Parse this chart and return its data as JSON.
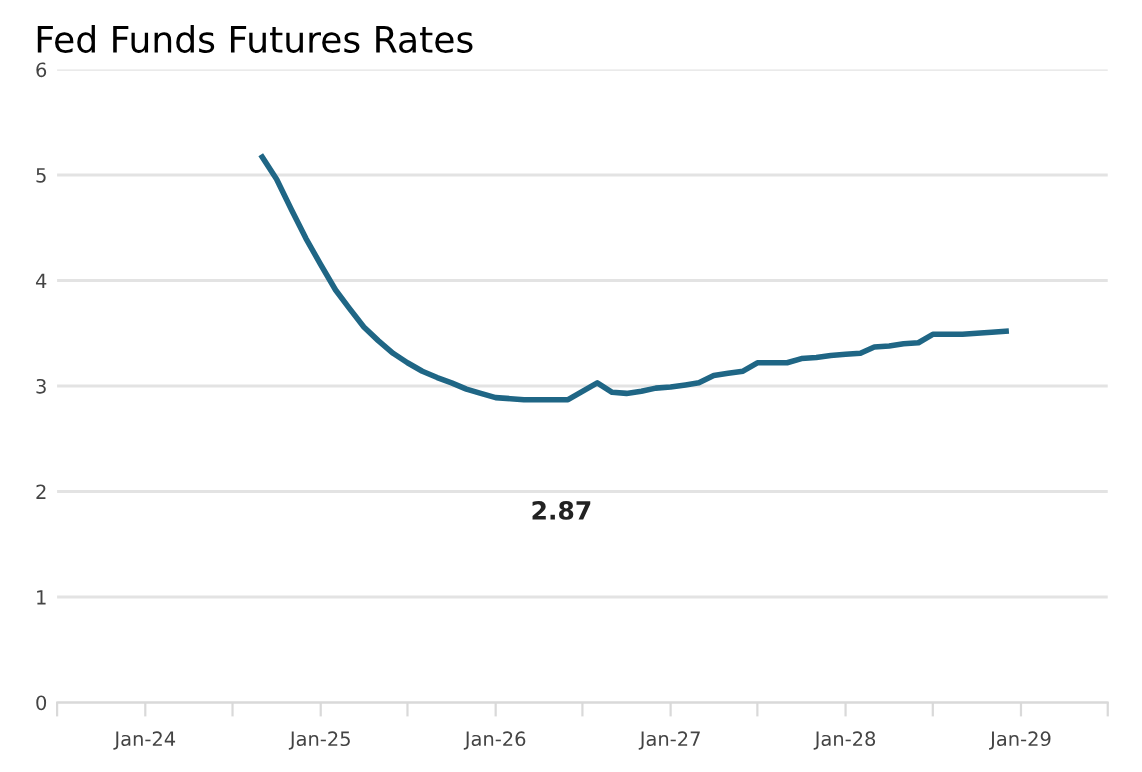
{
  "chart_data": {
    "type": "line",
    "title": "Fed Funds Futures Rates",
    "x": [
      "2024-09",
      "2024-10",
      "2024-11",
      "2024-12",
      "2025-01",
      "2025-02",
      "2025-03",
      "2025-04",
      "2025-05",
      "2025-06",
      "2025-07",
      "2025-08",
      "2025-09",
      "2025-10",
      "2025-11",
      "2025-12",
      "2026-01",
      "2026-02",
      "2026-03",
      "2026-04",
      "2026-05",
      "2026-06",
      "2026-07",
      "2026-08",
      "2026-09",
      "2026-10",
      "2026-11",
      "2026-12",
      "2027-01",
      "2027-02",
      "2027-03",
      "2027-04",
      "2027-05",
      "2027-06",
      "2027-07",
      "2027-08",
      "2027-09",
      "2027-10",
      "2027-11",
      "2027-12",
      "2028-01",
      "2028-02",
      "2028-03",
      "2028-04",
      "2028-05",
      "2028-06",
      "2028-07",
      "2028-08",
      "2028-09",
      "2028-10",
      "2028-11",
      "2028-12"
    ],
    "series": [
      {
        "color": "#1f6685",
        "values": [
          5.17,
          4.96,
          4.67,
          4.4,
          4.15,
          3.91,
          3.74,
          3.56,
          3.43,
          3.31,
          3.22,
          3.14,
          3.08,
          3.03,
          2.97,
          2.93,
          2.89,
          2.88,
          2.87,
          2.87,
          2.87,
          2.87,
          2.95,
          3.03,
          2.94,
          2.93,
          2.95,
          2.98,
          2.99,
          3.01,
          3.03,
          3.1,
          3.12,
          3.14,
          3.22,
          3.22,
          3.22,
          3.26,
          3.27,
          3.29,
          3.3,
          3.31,
          3.37,
          3.38,
          3.4,
          3.41,
          3.49,
          3.49,
          3.49,
          3.5,
          3.51,
          3.52
        ]
      }
    ],
    "annotations": [
      "2.87"
    ],
    "xlim": [
      "2023-07",
      "2029-07"
    ],
    "xticks": [
      {
        "value": "2023-07",
        "label": null
      },
      {
        "value": "2024-01",
        "label": "Jan-24"
      },
      {
        "value": "2024-07",
        "label": null
      },
      {
        "value": "2025-01",
        "label": "Jan-25"
      },
      {
        "value": "2025-07",
        "label": null
      },
      {
        "value": "2026-01",
        "label": "Jan-26"
      },
      {
        "value": "2026-07",
        "label": null
      },
      {
        "value": "2027-01",
        "label": "Jan-27"
      },
      {
        "value": "2027-07",
        "label": null
      },
      {
        "value": "2028-01",
        "label": "Jan-28"
      },
      {
        "value": "2028-07",
        "label": null
      },
      {
        "value": "2029-01",
        "label": "Jan-29"
      },
      {
        "value": "2029-07",
        "label": null
      }
    ],
    "ylim": [
      0,
      6
    ],
    "yticks": [
      0,
      1,
      2,
      3,
      4,
      5,
      6
    ],
    "grid": "y",
    "legend": false,
    "marker": "none",
    "line_style": "solid"
  }
}
